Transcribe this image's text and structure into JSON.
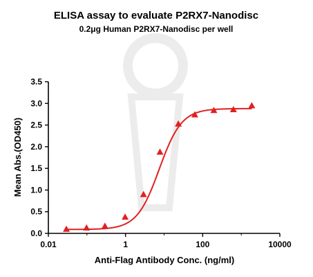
{
  "chart_data": {
    "type": "scatter",
    "title": "ELISA assay to evaluate P2RX7-Nanodisc",
    "subtitle": "0.2μg Human P2RX7-Nanodisc per well",
    "xlabel": "Anti-Flag Antibody Conc. (ng/ml)",
    "ylabel": "Mean Abs.(OD450)",
    "x_scale": "log",
    "xlim": [
      0.01,
      10000
    ],
    "ylim": [
      0.0,
      3.5
    ],
    "x_ticks": [
      0.01,
      1,
      100,
      10000
    ],
    "x_tick_labels": [
      "0.01",
      "1",
      "100",
      "10000"
    ],
    "y_ticks": [
      0.0,
      0.5,
      1.0,
      1.5,
      2.0,
      2.5,
      3.0,
      3.5
    ],
    "y_tick_labels": [
      "0.0",
      "0.5",
      "1.0",
      "1.5",
      "2.0",
      "2.5",
      "3.0",
      "3.5"
    ],
    "grid": false,
    "legend": "none",
    "marker": "triangle",
    "color": "#e02020",
    "series": [
      {
        "x": [
          0.0293,
          0.0977,
          0.293,
          0.977,
          2.93,
          7.81,
          23.4,
          62.5,
          195,
          625,
          1875
        ],
        "y": [
          0.1,
          0.13,
          0.17,
          0.38,
          0.9,
          1.88,
          2.53,
          2.74,
          2.84,
          2.86,
          2.95
        ]
      }
    ],
    "fit_curve": {
      "model": "4PL",
      "bottom": 0.09,
      "top": 2.88,
      "ec50": 7.5,
      "hill": 1.5
    },
    "watermark_color": "#ececec"
  }
}
